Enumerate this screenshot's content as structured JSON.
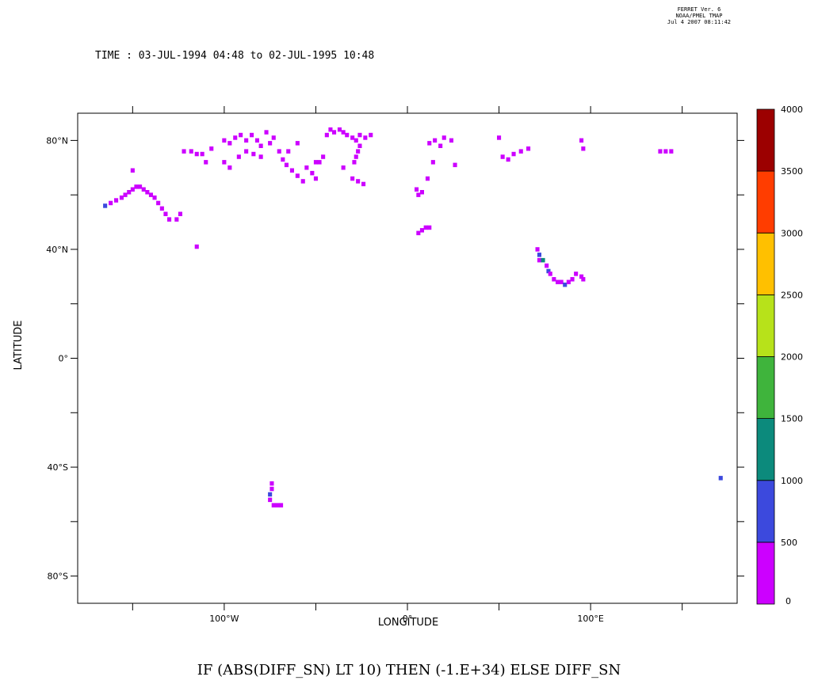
{
  "stamp": {
    "line1": "FERRET Ver. 6",
    "line2": "NOAA/PMEL TMAP",
    "line3": "Jul  4 2007 08:11:42"
  },
  "time_label": "TIME : 03-JUL-1994 04:48 to 02-JUL-1995 10:48",
  "bottom_title": "IF (ABS(DIFF_SN) LT 10) THEN (-1.E+34) ELSE DIFF_SN",
  "colors": {
    "frame": "#000000",
    "levels": [
      "#cc00ff",
      "#3c49dd",
      "#0c8a7c",
      "#3fb43c",
      "#b7e21a",
      "#ffc000",
      "#ff3d00",
      "#9c0000"
    ]
  },
  "chart_data": {
    "type": "heatmap",
    "xlabel": "LONGITUDE",
    "ylabel": "LATITUDE",
    "xlim": [
      -180,
      180
    ],
    "ylim": [
      -90,
      90
    ],
    "x_ticks": [
      -150,
      -100,
      -50,
      0,
      50,
      100,
      150
    ],
    "x_tick_labels": [
      {
        "value": -100,
        "label": "100°W"
      },
      {
        "value": 0,
        "label": "0°"
      },
      {
        "value": 100,
        "label": "100°E"
      }
    ],
    "y_ticks": [
      80,
      60,
      40,
      20,
      0,
      -20,
      -40,
      -60,
      -80
    ],
    "y_tick_labels": [
      {
        "value": 80,
        "label": "80°N"
      },
      {
        "value": 40,
        "label": "40°N"
      },
      {
        "value": 0,
        "label": "0°"
      },
      {
        "value": -40,
        "label": "40°S"
      },
      {
        "value": -80,
        "label": "80°S"
      }
    ],
    "colorbar": {
      "levels": [
        0,
        500,
        1000,
        1500,
        2000,
        2500,
        3000,
        3500,
        4000
      ],
      "labels": [
        "0",
        "500",
        "1000",
        "1500",
        "2000",
        "2500",
        "3000",
        "3500",
        "4000"
      ]
    },
    "cells": [
      [
        -150,
        62,
        200
      ],
      [
        -148,
        63,
        200
      ],
      [
        -146,
        63,
        200
      ],
      [
        -144,
        62,
        200
      ],
      [
        -152,
        61,
        200
      ],
      [
        -154,
        60,
        200
      ],
      [
        -156,
        59,
        200
      ],
      [
        -159,
        58,
        200
      ],
      [
        -162,
        57,
        200
      ],
      [
        -165,
        56,
        600
      ],
      [
        -142,
        61,
        200
      ],
      [
        -140,
        60,
        200
      ],
      [
        -138,
        59,
        200
      ],
      [
        -136,
        57,
        200
      ],
      [
        -134,
        55,
        200
      ],
      [
        -132,
        53,
        200
      ],
      [
        -130,
        51,
        200
      ],
      [
        -126,
        51,
        200
      ],
      [
        -124,
        53,
        200
      ],
      [
        -150,
        69,
        200
      ],
      [
        -115,
        41,
        200
      ],
      [
        -122,
        76,
        200
      ],
      [
        -118,
        76,
        200
      ],
      [
        -115,
        75,
        200
      ],
      [
        -112,
        75,
        200
      ],
      [
        -110,
        72,
        200
      ],
      [
        -107,
        77,
        200
      ],
      [
        -100,
        80,
        200
      ],
      [
        -97,
        79,
        200
      ],
      [
        -94,
        81,
        200
      ],
      [
        -91,
        82,
        200
      ],
      [
        -88,
        80,
        200
      ],
      [
        -85,
        82,
        200
      ],
      [
        -82,
        80,
        200
      ],
      [
        -80,
        78,
        200
      ],
      [
        -77,
        83,
        200
      ],
      [
        -75,
        79,
        200
      ],
      [
        -73,
        81,
        200
      ],
      [
        -70,
        76,
        200
      ],
      [
        -68,
        73,
        200
      ],
      [
        -66,
        71,
        200
      ],
      [
        -63,
        69,
        200
      ],
      [
        -60,
        67,
        200
      ],
      [
        -57,
        65,
        200
      ],
      [
        -55,
        70,
        200
      ],
      [
        -52,
        68,
        200
      ],
      [
        -50,
        66,
        200
      ],
      [
        -48,
        72,
        200
      ],
      [
        -46,
        74,
        200
      ],
      [
        -44,
        82,
        200
      ],
      [
        -42,
        84,
        200
      ],
      [
        -40,
        83,
        200
      ],
      [
        -37,
        84,
        200
      ],
      [
        -35,
        83,
        200
      ],
      [
        -33,
        82,
        200
      ],
      [
        -30,
        81,
        200
      ],
      [
        -28,
        80,
        200
      ],
      [
        -26,
        78,
        200
      ],
      [
        -27,
        76,
        200
      ],
      [
        -28,
        74,
        200
      ],
      [
        -29,
        72,
        200
      ],
      [
        -26,
        82,
        200
      ],
      [
        -23,
        81,
        200
      ],
      [
        -20,
        82,
        200
      ],
      [
        -100,
        72,
        200
      ],
      [
        -97,
        70,
        200
      ],
      [
        -92,
        74,
        200
      ],
      [
        -88,
        76,
        200
      ],
      [
        -84,
        75,
        200
      ],
      [
        -80,
        74,
        200
      ],
      [
        -65,
        76,
        200
      ],
      [
        -60,
        79,
        200
      ],
      [
        -50,
        72,
        200
      ],
      [
        -30,
        66,
        200
      ],
      [
        -27,
        65,
        200
      ],
      [
        -24,
        64,
        200
      ],
      [
        -35,
        70,
        200
      ],
      [
        5,
        62,
        200
      ],
      [
        6,
        60,
        200
      ],
      [
        8,
        61,
        200
      ],
      [
        6,
        46,
        200
      ],
      [
        8,
        47,
        200
      ],
      [
        10,
        48,
        200
      ],
      [
        12,
        48,
        200
      ],
      [
        12,
        79,
        200
      ],
      [
        15,
        80,
        200
      ],
      [
        18,
        78,
        200
      ],
      [
        20,
        81,
        200
      ],
      [
        24,
        80,
        200
      ],
      [
        26,
        71,
        200
      ],
      [
        14,
        72,
        200
      ],
      [
        11,
        66,
        200
      ],
      [
        50,
        81,
        200
      ],
      [
        52,
        74,
        200
      ],
      [
        55,
        73,
        200
      ],
      [
        58,
        75,
        200
      ],
      [
        62,
        76,
        200
      ],
      [
        66,
        77,
        200
      ],
      [
        95,
        80,
        200
      ],
      [
        96,
        77,
        200
      ],
      [
        138,
        76,
        200
      ],
      [
        141,
        76,
        200
      ],
      [
        144,
        76,
        200
      ],
      [
        71,
        40,
        200
      ],
      [
        72,
        38,
        800
      ],
      [
        72,
        36,
        200
      ],
      [
        74,
        36,
        1200
      ],
      [
        76,
        34,
        200
      ],
      [
        77,
        32,
        700
      ],
      [
        78,
        31,
        200
      ],
      [
        80,
        29,
        200
      ],
      [
        82,
        28,
        200
      ],
      [
        84,
        28,
        200
      ],
      [
        86,
        27,
        600
      ],
      [
        88,
        28,
        200
      ],
      [
        90,
        29,
        200
      ],
      [
        92,
        31,
        200
      ],
      [
        95,
        30,
        200
      ],
      [
        96,
        29,
        200
      ],
      [
        -74,
        -46,
        200
      ],
      [
        -74,
        -48,
        200
      ],
      [
        -75,
        -50,
        700
      ],
      [
        -75,
        -52,
        200
      ],
      [
        -73,
        -54,
        200
      ],
      [
        -71,
        -54,
        200
      ],
      [
        -69,
        -54,
        200
      ],
      [
        171,
        -44,
        600
      ]
    ]
  }
}
